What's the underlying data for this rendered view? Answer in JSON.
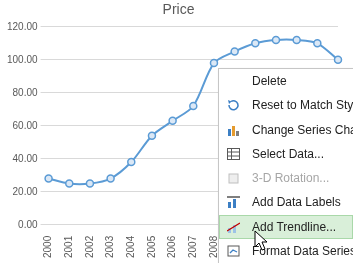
{
  "chart_data": {
    "type": "line",
    "title": "Price",
    "categories": [
      "2000",
      "2001",
      "2002",
      "2003",
      "2004",
      "2005",
      "2006",
      "2007",
      "2008",
      null,
      null,
      null,
      null,
      null,
      null
    ],
    "values": [
      28,
      25,
      25,
      28,
      38,
      54,
      63,
      72,
      98,
      105,
      110,
      112,
      112,
      110,
      100
    ],
    "color": "#5b9bd5",
    "marker": "circle",
    "ylim": [
      0,
      120
    ],
    "yticks": [
      {
        "value": 0,
        "label": "0.00"
      },
      {
        "value": 20,
        "label": "20.00"
      },
      {
        "value": 40,
        "label": "40.00"
      },
      {
        "value": 60,
        "label": "60.00"
      },
      {
        "value": 80,
        "label": "80.00"
      },
      {
        "value": 100,
        "label": "100.00"
      },
      {
        "value": 120,
        "label": "120.00"
      }
    ],
    "grid": true
  },
  "context_menu": {
    "items": [
      {
        "label": "Delete"
      },
      {
        "label": "Reset to Match Styl"
      },
      {
        "label": "Change Series Char"
      },
      {
        "label": "Select Data..."
      },
      {
        "label": "3-D Rotation...",
        "disabled": true
      },
      {
        "label": "Add Data Labels"
      },
      {
        "label": "Add Trendline...",
        "highlighted": true
      },
      {
        "label": "Format Data Series..."
      }
    ]
  }
}
